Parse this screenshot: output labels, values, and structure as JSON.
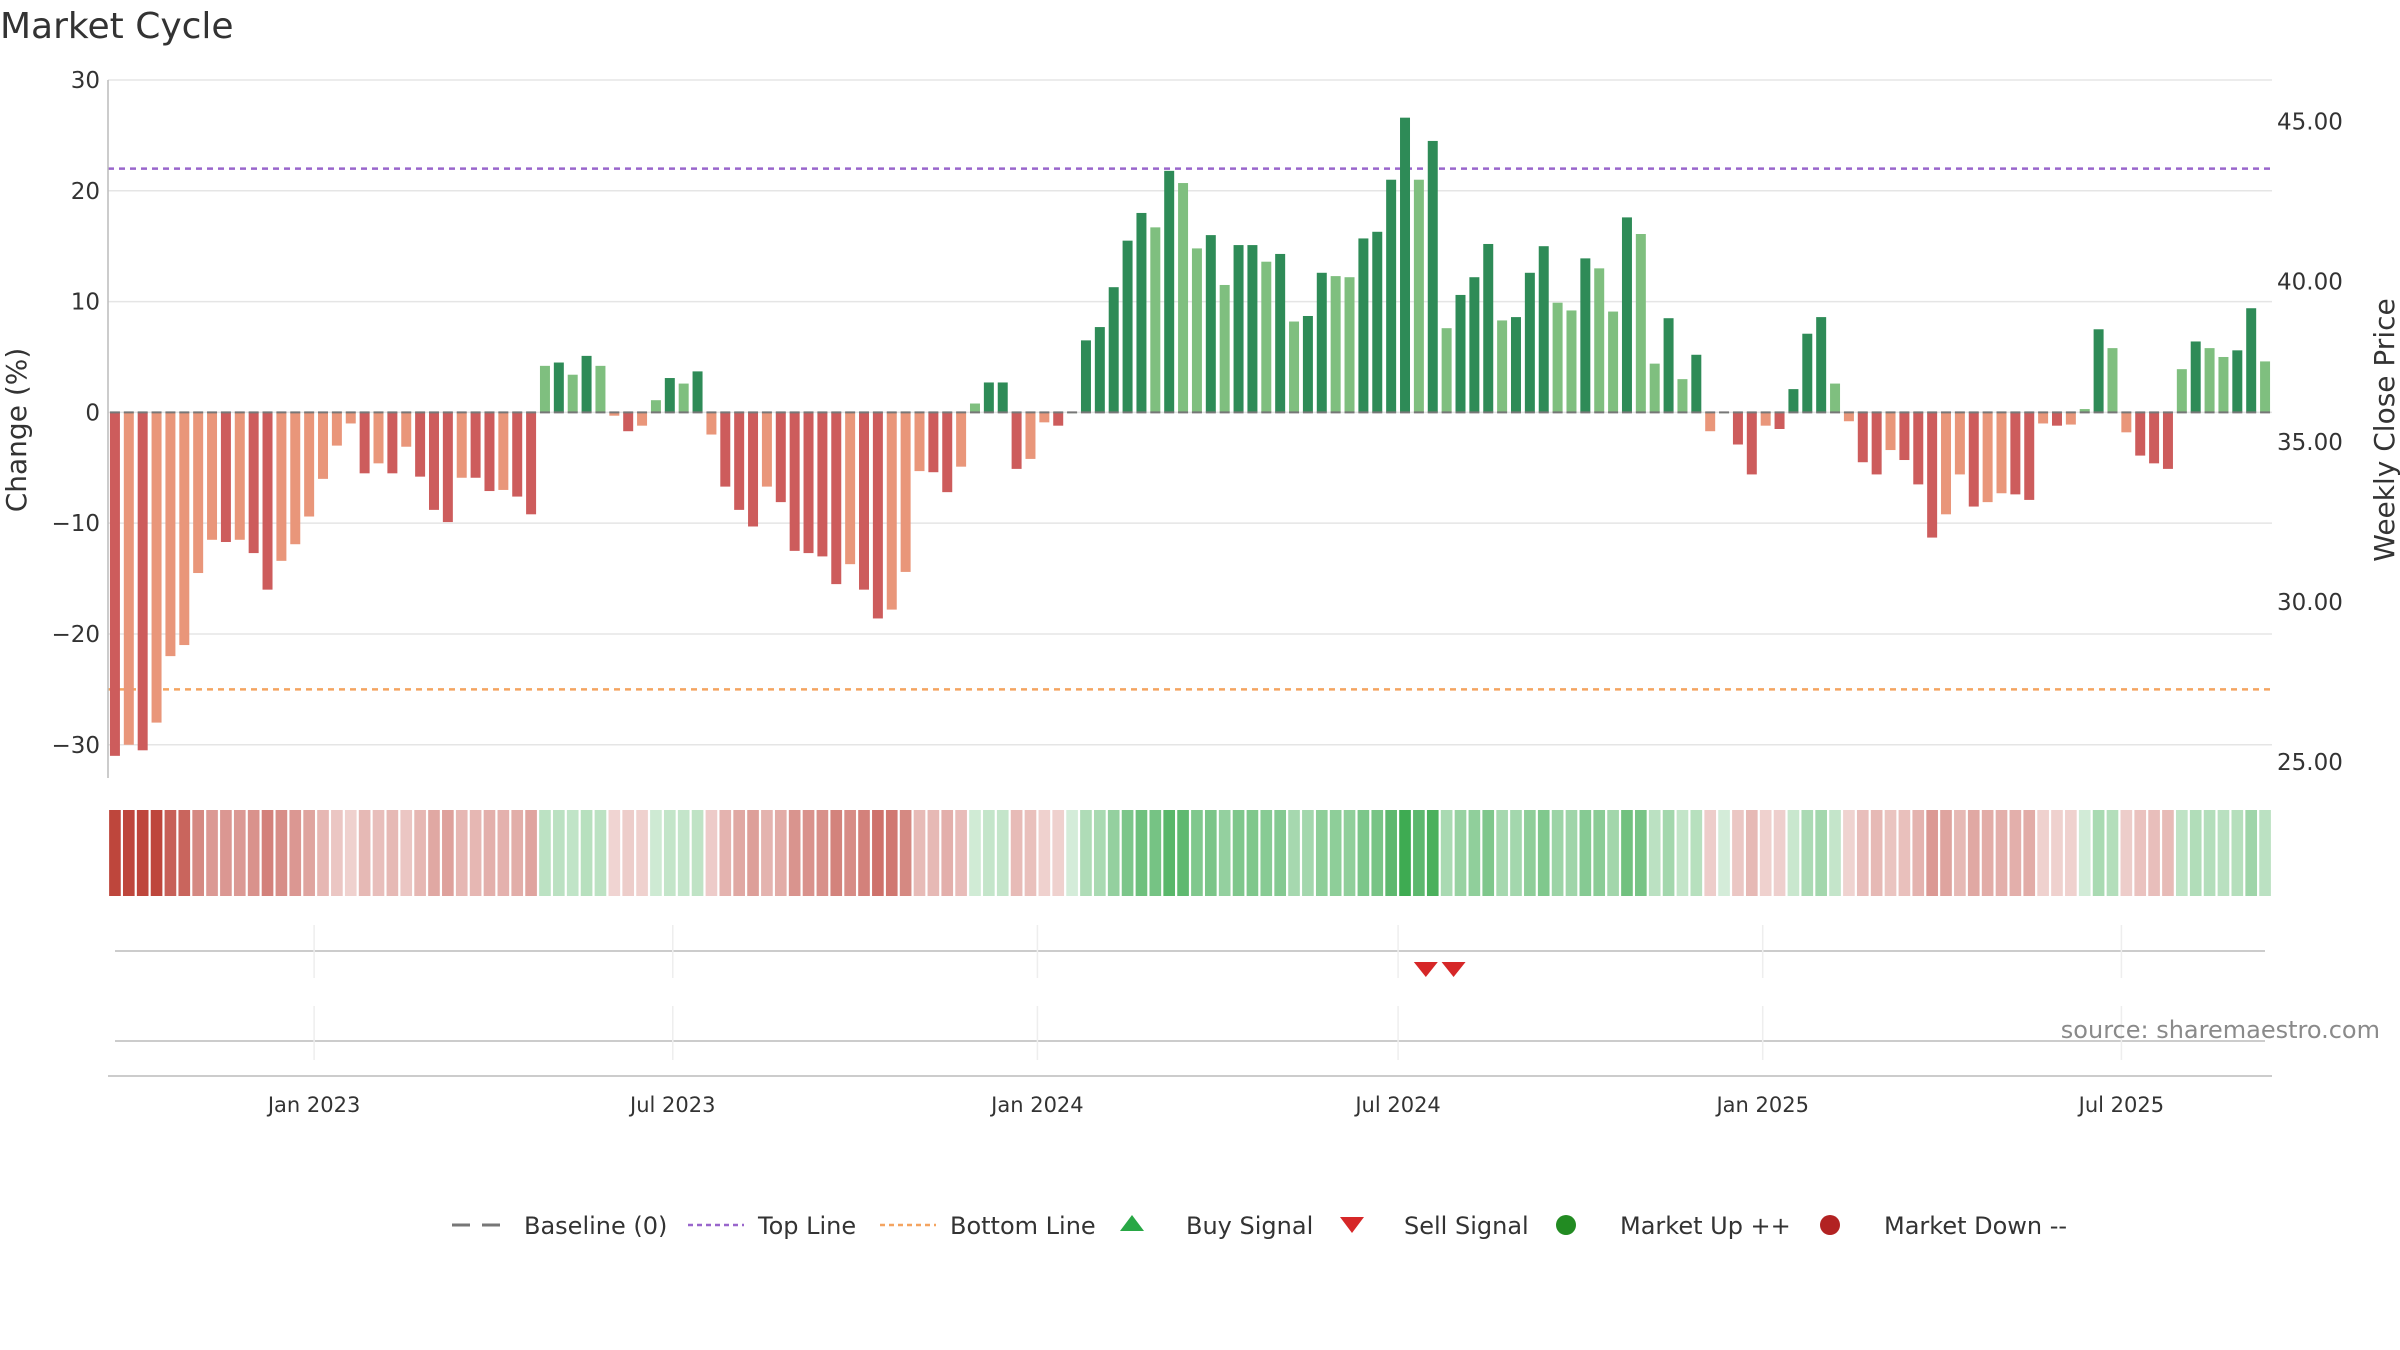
{
  "chart_data": {
    "type": "bar",
    "title": "Market Cycle",
    "ylabel": "Change (%)",
    "ylabel_right": "Weekly Close Price",
    "ylim": [
      -33,
      30
    ],
    "ylim_right": [
      24.5,
      46.3
    ],
    "yticks": [
      30,
      20,
      10,
      0,
      -10,
      -20,
      -30
    ],
    "yticks_right": [
      "45.00",
      "40.00",
      "35.00",
      "30.00",
      "25.00"
    ],
    "yticks_right_values": [
      45,
      40,
      35,
      30,
      25
    ],
    "x_ticks": [
      "Jan 2023",
      "Jul 2023",
      "Jan 2024",
      "Jul 2024",
      "Jan 2025",
      "Jul 2025"
    ],
    "x_tick_dates": [
      "2023-01-01",
      "2023-07-01",
      "2024-01-01",
      "2024-07-01",
      "2025-01-01",
      "2025-07-01"
    ],
    "x_start": "2022-09-19",
    "week_days": 7,
    "top_line": 22,
    "bottom_line": -25,
    "values": [
      -31,
      -30,
      -30.5,
      -28,
      -22,
      -21,
      -14.5,
      -11.5,
      -11.7,
      -11.5,
      -12.7,
      -16,
      -13.4,
      -11.9,
      -9.4,
      -6,
      -3,
      -1,
      -5.5,
      -4.6,
      -5.5,
      -3.1,
      -5.8,
      -8.8,
      -9.9,
      -5.9,
      -5.9,
      -7.1,
      -7,
      -7.6,
      -9.2,
      4.2,
      4.5,
      3.4,
      5.1,
      4.2,
      -0.3,
      -1.7,
      -1.2,
      1.1,
      3.1,
      2.6,
      3.7,
      -2,
      -6.7,
      -8.8,
      -10.3,
      -6.7,
      -8.1,
      -12.5,
      -12.7,
      -13,
      -15.5,
      -13.7,
      -16,
      -18.6,
      -17.8,
      -14.4,
      -5.3,
      -5.4,
      -7.2,
      -4.9,
      0.8,
      2.7,
      2.7,
      -5.1,
      -4.2,
      -0.9,
      -1.2,
      0,
      6.5,
      7.7,
      11.3,
      15.5,
      18,
      16.7,
      21.8,
      20.7,
      14.8,
      16,
      11.5,
      15.1,
      15.1,
      13.6,
      14.3,
      8.2,
      8.7,
      12.6,
      12.3,
      12.2,
      15.7,
      16.3,
      21,
      26.6,
      21,
      24.5,
      7.6,
      10.6,
      12.2,
      15.2,
      8.3,
      8.6,
      12.6,
      15,
      9.9,
      9.2,
      13.9,
      13,
      9.1,
      17.6,
      16.1,
      4.4,
      8.5,
      3,
      5.2,
      -1.7,
      0,
      -2.9,
      -5.6,
      -1.2,
      -1.5,
      2.1,
      7.1,
      8.6,
      2.6,
      -0.8,
      -4.5,
      -5.6,
      -3.4,
      -4.3,
      -6.5,
      -11.3,
      -9.2,
      -5.6,
      -8.5,
      -8.1,
      -7.3,
      -7.4,
      -7.9,
      -1,
      -1.2,
      -1.1,
      0.3,
      7.5,
      5.8,
      -1.8,
      -3.9,
      -4.6,
      -5.1,
      3.9,
      6.4,
      5.8,
      5,
      5.6,
      9.4,
      4.6
    ],
    "sell_signals": [
      "2024-07-15",
      "2024-07-29"
    ],
    "buy_signals": [],
    "legend": [
      "Baseline (0)",
      "Top Line",
      "Bottom Line",
      "Buy Signal",
      "Sell Signal",
      "Market Up ++",
      "Market Down --"
    ],
    "legend_placement": "bottom",
    "grid": true,
    "source": "source: sharemaestro.com",
    "colors": {
      "up_strong": "#2e8b57",
      "up_light": "#7fbf7f",
      "down_strong": "#cd5c5c",
      "down_light": "#e9967a",
      "top_line": "#9966cc",
      "bottom_line": "#f4a460",
      "baseline": "#777777",
      "buy": "#28a745",
      "sell": "#d62728",
      "market_up": "#228b22",
      "market_down": "#b22222",
      "grid": "#e5e5e5"
    }
  }
}
